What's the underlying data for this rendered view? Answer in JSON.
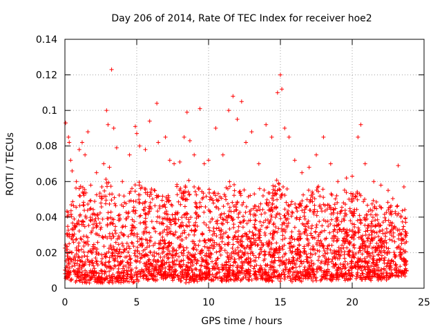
{
  "chart_data": {
    "type": "scatter",
    "title": "Day 206 of 2014, Rate Of TEC Index for receiver hoe2",
    "xlabel": "GPS time / hours",
    "ylabel": "ROTI / TECUs",
    "xlim": [
      0,
      25
    ],
    "ylim": [
      0,
      0.14
    ],
    "x_ticks": [
      {
        "value": 0,
        "label": "0"
      },
      {
        "value": 5,
        "label": "5"
      },
      {
        "value": 10,
        "label": "10"
      },
      {
        "value": 15,
        "label": "15"
      },
      {
        "value": 20,
        "label": "20"
      },
      {
        "value": 25,
        "label": "25"
      }
    ],
    "y_ticks": [
      {
        "value": 0,
        "label": "0"
      },
      {
        "value": 0.02,
        "label": "0.02"
      },
      {
        "value": 0.04,
        "label": "0.04"
      },
      {
        "value": 0.06,
        "label": "0.06"
      },
      {
        "value": 0.08,
        "label": "0.08"
      },
      {
        "value": 0.1,
        "label": "0.1"
      },
      {
        "value": 0.12,
        "label": "0.12"
      },
      {
        "value": 0.14,
        "label": "0.14"
      }
    ],
    "grid": true,
    "marker": "plus",
    "series": [
      {
        "name": "hoe2 ROTI",
        "color": "#ff0000",
        "points": [
          {
            "x": 0.05,
            "y": 0.093
          },
          {
            "x": 0.25,
            "y": 0.085
          },
          {
            "x": 0.3,
            "y": 0.082
          },
          {
            "x": 0.4,
            "y": 0.072
          },
          {
            "x": 0.5,
            "y": 0.066
          },
          {
            "x": 0.8,
            "y": 0.06
          },
          {
            "x": 1.0,
            "y": 0.078
          },
          {
            "x": 1.2,
            "y": 0.082
          },
          {
            "x": 1.4,
            "y": 0.075
          },
          {
            "x": 1.6,
            "y": 0.088
          },
          {
            "x": 1.8,
            "y": 0.058
          },
          {
            "x": 2.2,
            "y": 0.065
          },
          {
            "x": 2.7,
            "y": 0.07
          },
          {
            "x": 2.9,
            "y": 0.1
          },
          {
            "x": 3.0,
            "y": 0.092
          },
          {
            "x": 3.1,
            "y": 0.068
          },
          {
            "x": 3.25,
            "y": 0.123
          },
          {
            "x": 3.4,
            "y": 0.09
          },
          {
            "x": 3.6,
            "y": 0.079
          },
          {
            "x": 4.0,
            "y": 0.06
          },
          {
            "x": 4.5,
            "y": 0.075
          },
          {
            "x": 4.9,
            "y": 0.091
          },
          {
            "x": 5.0,
            "y": 0.087
          },
          {
            "x": 5.2,
            "y": 0.08
          },
          {
            "x": 5.6,
            "y": 0.078
          },
          {
            "x": 5.9,
            "y": 0.094
          },
          {
            "x": 6.4,
            "y": 0.104
          },
          {
            "x": 6.5,
            "y": 0.082
          },
          {
            "x": 7.0,
            "y": 0.085
          },
          {
            "x": 7.3,
            "y": 0.072
          },
          {
            "x": 7.6,
            "y": 0.07
          },
          {
            "x": 8.0,
            "y": 0.071
          },
          {
            "x": 8.3,
            "y": 0.085
          },
          {
            "x": 8.5,
            "y": 0.099
          },
          {
            "x": 8.7,
            "y": 0.083
          },
          {
            "x": 9.0,
            "y": 0.075
          },
          {
            "x": 9.4,
            "y": 0.101
          },
          {
            "x": 9.7,
            "y": 0.07
          },
          {
            "x": 10.0,
            "y": 0.072
          },
          {
            "x": 10.5,
            "y": 0.09
          },
          {
            "x": 11.0,
            "y": 0.075
          },
          {
            "x": 11.4,
            "y": 0.1
          },
          {
            "x": 11.7,
            "y": 0.108
          },
          {
            "x": 12.0,
            "y": 0.095
          },
          {
            "x": 12.3,
            "y": 0.105
          },
          {
            "x": 12.6,
            "y": 0.082
          },
          {
            "x": 13.0,
            "y": 0.088
          },
          {
            "x": 13.5,
            "y": 0.07
          },
          {
            "x": 14.0,
            "y": 0.092
          },
          {
            "x": 14.4,
            "y": 0.085
          },
          {
            "x": 14.8,
            "y": 0.11
          },
          {
            "x": 15.0,
            "y": 0.12
          },
          {
            "x": 15.1,
            "y": 0.112
          },
          {
            "x": 15.3,
            "y": 0.09
          },
          {
            "x": 15.6,
            "y": 0.085
          },
          {
            "x": 16.0,
            "y": 0.072
          },
          {
            "x": 16.5,
            "y": 0.065
          },
          {
            "x": 17.0,
            "y": 0.068
          },
          {
            "x": 17.5,
            "y": 0.075
          },
          {
            "x": 18.0,
            "y": 0.085
          },
          {
            "x": 18.5,
            "y": 0.07
          },
          {
            "x": 19.0,
            "y": 0.06
          },
          {
            "x": 19.6,
            "y": 0.062
          },
          {
            "x": 20.0,
            "y": 0.063
          },
          {
            "x": 20.4,
            "y": 0.085
          },
          {
            "x": 20.6,
            "y": 0.092
          },
          {
            "x": 20.9,
            "y": 0.07
          },
          {
            "x": 21.5,
            "y": 0.06
          },
          {
            "x": 22.0,
            "y": 0.058
          },
          {
            "x": 22.5,
            "y": 0.055
          },
          {
            "x": 23.2,
            "y": 0.069
          },
          {
            "x": 23.6,
            "y": 0.057
          }
        ],
        "density_profile": [
          {
            "x": 0,
            "ymin": 0.006,
            "ymax": 0.045
          },
          {
            "x": 1,
            "ymin": 0.005,
            "ymax": 0.058
          },
          {
            "x": 2,
            "ymin": 0.004,
            "ymax": 0.05
          },
          {
            "x": 3,
            "ymin": 0.004,
            "ymax": 0.062
          },
          {
            "x": 4,
            "ymin": 0.005,
            "ymax": 0.052
          },
          {
            "x": 5,
            "ymin": 0.005,
            "ymax": 0.06
          },
          {
            "x": 6,
            "ymin": 0.006,
            "ymax": 0.058
          },
          {
            "x": 7,
            "ymin": 0.006,
            "ymax": 0.05
          },
          {
            "x": 8,
            "ymin": 0.005,
            "ymax": 0.06
          },
          {
            "x": 9,
            "ymin": 0.005,
            "ymax": 0.06
          },
          {
            "x": 10,
            "ymin": 0.006,
            "ymax": 0.055
          },
          {
            "x": 11,
            "ymin": 0.005,
            "ymax": 0.058
          },
          {
            "x": 12,
            "ymin": 0.006,
            "ymax": 0.06
          },
          {
            "x": 13,
            "ymin": 0.006,
            "ymax": 0.052
          },
          {
            "x": 14,
            "ymin": 0.006,
            "ymax": 0.058
          },
          {
            "x": 15,
            "ymin": 0.005,
            "ymax": 0.062
          },
          {
            "x": 16,
            "ymin": 0.005,
            "ymax": 0.05
          },
          {
            "x": 17,
            "ymin": 0.006,
            "ymax": 0.058
          },
          {
            "x": 18,
            "ymin": 0.006,
            "ymax": 0.06
          },
          {
            "x": 19,
            "ymin": 0.006,
            "ymax": 0.052
          },
          {
            "x": 20,
            "ymin": 0.006,
            "ymax": 0.056
          },
          {
            "x": 21,
            "ymin": 0.006,
            "ymax": 0.05
          },
          {
            "x": 22,
            "ymin": 0.006,
            "ymax": 0.048
          },
          {
            "x": 23,
            "ymin": 0.007,
            "ymax": 0.05
          },
          {
            "x": 23.8,
            "ymin": 0.008,
            "ymax": 0.045
          }
        ]
      }
    ]
  }
}
